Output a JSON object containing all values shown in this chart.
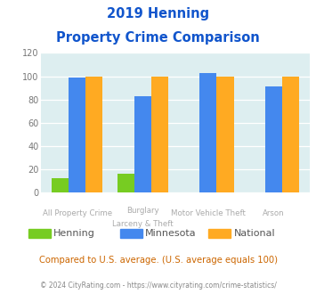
{
  "title_line1": "2019 Henning",
  "title_line2": "Property Crime Comparison",
  "cat_labels_line1": [
    "All Property Crime",
    "Burglary",
    "Motor Vehicle Theft",
    "Arson"
  ],
  "cat_labels_line2": [
    "",
    "Larceny & Theft",
    "",
    ""
  ],
  "henning": [
    12,
    16,
    0,
    0
  ],
  "minnesota": [
    99,
    83,
    103,
    91
  ],
  "national": [
    100,
    100,
    100,
    100
  ],
  "bar_colors": {
    "henning": "#77cc22",
    "minnesota": "#4488ee",
    "national": "#ffaa22"
  },
  "ylim": [
    0,
    120
  ],
  "yticks": [
    0,
    20,
    40,
    60,
    80,
    100,
    120
  ],
  "bg_color": "#ddeef0",
  "title_color": "#1155cc",
  "xlabel_color": "#aaaaaa",
  "note_text": "Compared to U.S. average. (U.S. average equals 100)",
  "note_color": "#cc6600",
  "footer_text": "© 2024 CityRating.com - https://www.cityrating.com/crime-statistics/",
  "footer_color": "#888888",
  "legend_labels": [
    "Henning",
    "Minnesota",
    "National"
  ]
}
